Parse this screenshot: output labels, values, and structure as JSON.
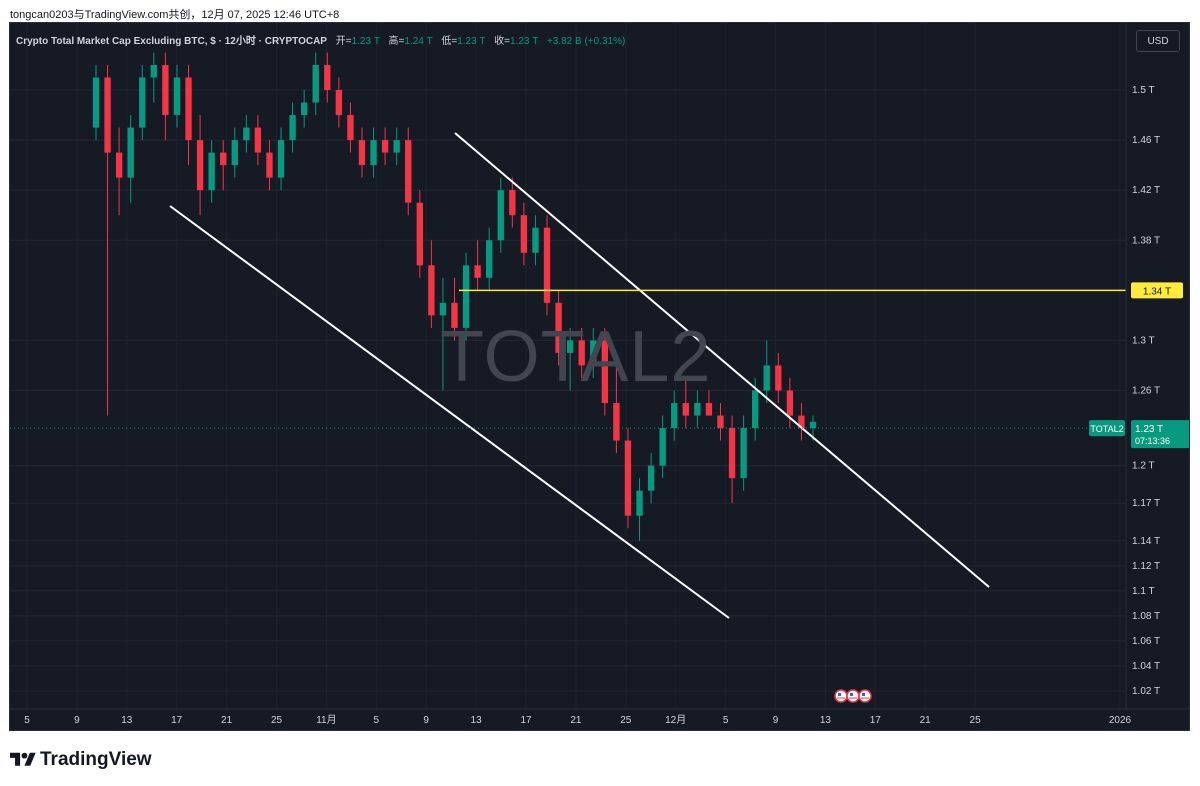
{
  "attribution": "tongcan0203与TradingView.com共创，12月 07, 2025 12:46 UTC+8",
  "legend": {
    "title": "Crypto Total Market Cap Excluding BTC, $ · 12小时 · CRYPTOCAP",
    "open_label": "开=",
    "open_value": "1.23 T",
    "high_label": "高=",
    "high_value": "1.24 T",
    "low_label": "低=",
    "low_value": "1.23 T",
    "close_label": "收=",
    "close_value": "1.23 T",
    "change": "+3.82 B (+0.31%)"
  },
  "currency_button": "USD",
  "watermark": "TOTAL2",
  "brand": "TradingView",
  "event_icons": [
    "flag-icon-us",
    "flag-icon-us",
    "flag-icon-us"
  ],
  "chart_data": {
    "type": "candlestick",
    "symbol": "TOTAL2",
    "interval": "12小时",
    "price_axis_labels": [
      "1.5 T",
      "1.46 T",
      "1.42 T",
      "1.38 T",
      "1.3 T",
      "1.26 T",
      "1.2 T",
      "1.17 T",
      "1.14 T",
      "1.12 T",
      "1.1 T",
      "1.08 T",
      "1.06 T",
      "1.04 T",
      "1.02 T"
    ],
    "time_axis_labels": [
      "5",
      "9",
      "13",
      "17",
      "21",
      "25",
      "11月",
      "5",
      "9",
      "13",
      "17",
      "21",
      "25",
      "12月",
      "5",
      "9",
      "13",
      "17",
      "21",
      "25",
      "2026"
    ],
    "horizontal_level": {
      "price": 1.34,
      "label": "1.34 T",
      "color": "#ffeb3b"
    },
    "last_price": {
      "symbol_label": "TOTAL2",
      "price": "1.23 T",
      "countdown": "07:13:36",
      "color": "#089981"
    },
    "channel_lines_color": "#ffffff",
    "up_color": "#089981",
    "down_color": "#f23645",
    "candles_ohlc": [
      [
        1.47,
        1.52,
        1.46,
        1.51
      ],
      [
        1.51,
        1.52,
        1.24,
        1.45
      ],
      [
        1.45,
        1.47,
        1.4,
        1.43
      ],
      [
        1.43,
        1.48,
        1.41,
        1.47
      ],
      [
        1.47,
        1.52,
        1.46,
        1.51
      ],
      [
        1.51,
        1.53,
        1.49,
        1.52
      ],
      [
        1.52,
        1.53,
        1.46,
        1.48
      ],
      [
        1.48,
        1.52,
        1.47,
        1.51
      ],
      [
        1.51,
        1.52,
        1.44,
        1.46
      ],
      [
        1.46,
        1.48,
        1.4,
        1.42
      ],
      [
        1.42,
        1.46,
        1.41,
        1.45
      ],
      [
        1.45,
        1.46,
        1.42,
        1.44
      ],
      [
        1.44,
        1.47,
        1.43,
        1.46
      ],
      [
        1.46,
        1.48,
        1.45,
        1.47
      ],
      [
        1.47,
        1.48,
        1.44,
        1.45
      ],
      [
        1.45,
        1.46,
        1.42,
        1.43
      ],
      [
        1.43,
        1.47,
        1.42,
        1.46
      ],
      [
        1.46,
        1.49,
        1.45,
        1.48
      ],
      [
        1.48,
        1.5,
        1.47,
        1.49
      ],
      [
        1.49,
        1.53,
        1.48,
        1.52
      ],
      [
        1.52,
        1.53,
        1.49,
        1.5
      ],
      [
        1.5,
        1.51,
        1.47,
        1.48
      ],
      [
        1.48,
        1.49,
        1.45,
        1.46
      ],
      [
        1.46,
        1.47,
        1.43,
        1.44
      ],
      [
        1.44,
        1.47,
        1.43,
        1.46
      ],
      [
        1.46,
        1.47,
        1.44,
        1.45
      ],
      [
        1.45,
        1.47,
        1.44,
        1.46
      ],
      [
        1.46,
        1.47,
        1.4,
        1.41
      ],
      [
        1.41,
        1.42,
        1.35,
        1.36
      ],
      [
        1.36,
        1.38,
        1.31,
        1.32
      ],
      [
        1.32,
        1.35,
        1.26,
        1.33
      ],
      [
        1.33,
        1.35,
        1.3,
        1.31
      ],
      [
        1.31,
        1.37,
        1.3,
        1.36
      ],
      [
        1.36,
        1.38,
        1.34,
        1.35
      ],
      [
        1.35,
        1.39,
        1.34,
        1.38
      ],
      [
        1.38,
        1.43,
        1.37,
        1.42
      ],
      [
        1.42,
        1.43,
        1.39,
        1.4
      ],
      [
        1.4,
        1.41,
        1.36,
        1.37
      ],
      [
        1.37,
        1.4,
        1.36,
        1.39
      ],
      [
        1.39,
        1.4,
        1.32,
        1.33
      ],
      [
        1.33,
        1.34,
        1.28,
        1.29
      ],
      [
        1.29,
        1.31,
        1.26,
        1.3
      ],
      [
        1.3,
        1.31,
        1.27,
        1.28
      ],
      [
        1.28,
        1.31,
        1.27,
        1.3
      ],
      [
        1.3,
        1.31,
        1.24,
        1.25
      ],
      [
        1.25,
        1.28,
        1.21,
        1.22
      ],
      [
        1.22,
        1.23,
        1.15,
        1.16
      ],
      [
        1.16,
        1.19,
        1.14,
        1.18
      ],
      [
        1.18,
        1.21,
        1.17,
        1.2
      ],
      [
        1.2,
        1.24,
        1.19,
        1.23
      ],
      [
        1.23,
        1.26,
        1.22,
        1.25
      ],
      [
        1.25,
        1.27,
        1.23,
        1.24
      ],
      [
        1.24,
        1.26,
        1.23,
        1.25
      ],
      [
        1.25,
        1.26,
        1.24,
        1.24
      ],
      [
        1.24,
        1.25,
        1.22,
        1.23
      ],
      [
        1.23,
        1.24,
        1.17,
        1.19
      ],
      [
        1.19,
        1.24,
        1.18,
        1.23
      ],
      [
        1.23,
        1.27,
        1.22,
        1.26
      ],
      [
        1.26,
        1.3,
        1.25,
        1.28
      ],
      [
        1.28,
        1.29,
        1.25,
        1.26
      ],
      [
        1.26,
        1.27,
        1.23,
        1.24
      ],
      [
        1.24,
        1.25,
        1.22,
        1.23
      ],
      [
        1.23,
        1.24,
        1.22,
        1.235
      ]
    ]
  }
}
